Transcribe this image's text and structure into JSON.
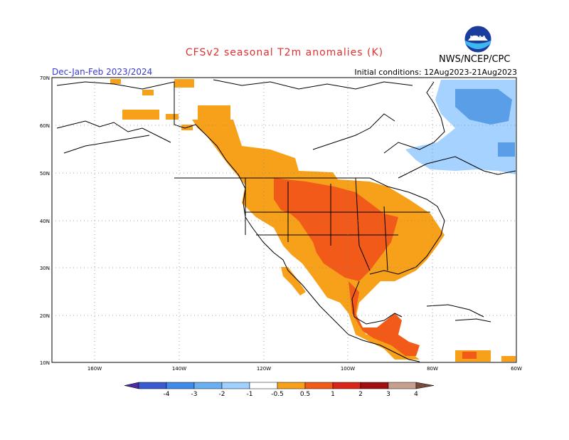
{
  "title": "CFSv2 seasonal T2m anomalies (K)",
  "period": "Dec-Jan-Feb 2023/2024",
  "initial_conditions": "Initial conditions: 12Aug2023-21Aug2023",
  "agency": "NWS/NCEP/CPC",
  "logo_text": "NOAA",
  "lat_labels": [
    "70N",
    "60N",
    "50N",
    "40N",
    "30N",
    "20N",
    "10N"
  ],
  "lon_labels": [
    "160W",
    "140W",
    "120W",
    "100W",
    "80W",
    "60W"
  ],
  "legend": {
    "labels": [
      "-4",
      "-3",
      "-2",
      "-1",
      "-0.5",
      "0.5",
      "1",
      "2",
      "3",
      "4"
    ],
    "colors": [
      "#4b2da0",
      "#3a5bd0",
      "#3f8be8",
      "#6ab0f0",
      "#9fd0ff",
      "#ffffff",
      "#f7a01a",
      "#f25a1a",
      "#d9261b",
      "#a01010",
      "#c8a090",
      "#7a4a3a"
    ]
  },
  "anomaly_colors": {
    "warm_0_5_1": "#f7a01a",
    "warm_1_2": "#f25a1a",
    "cool_0_5_1": "#a6d2ff",
    "cool_1_2": "#5a9ee8"
  }
}
